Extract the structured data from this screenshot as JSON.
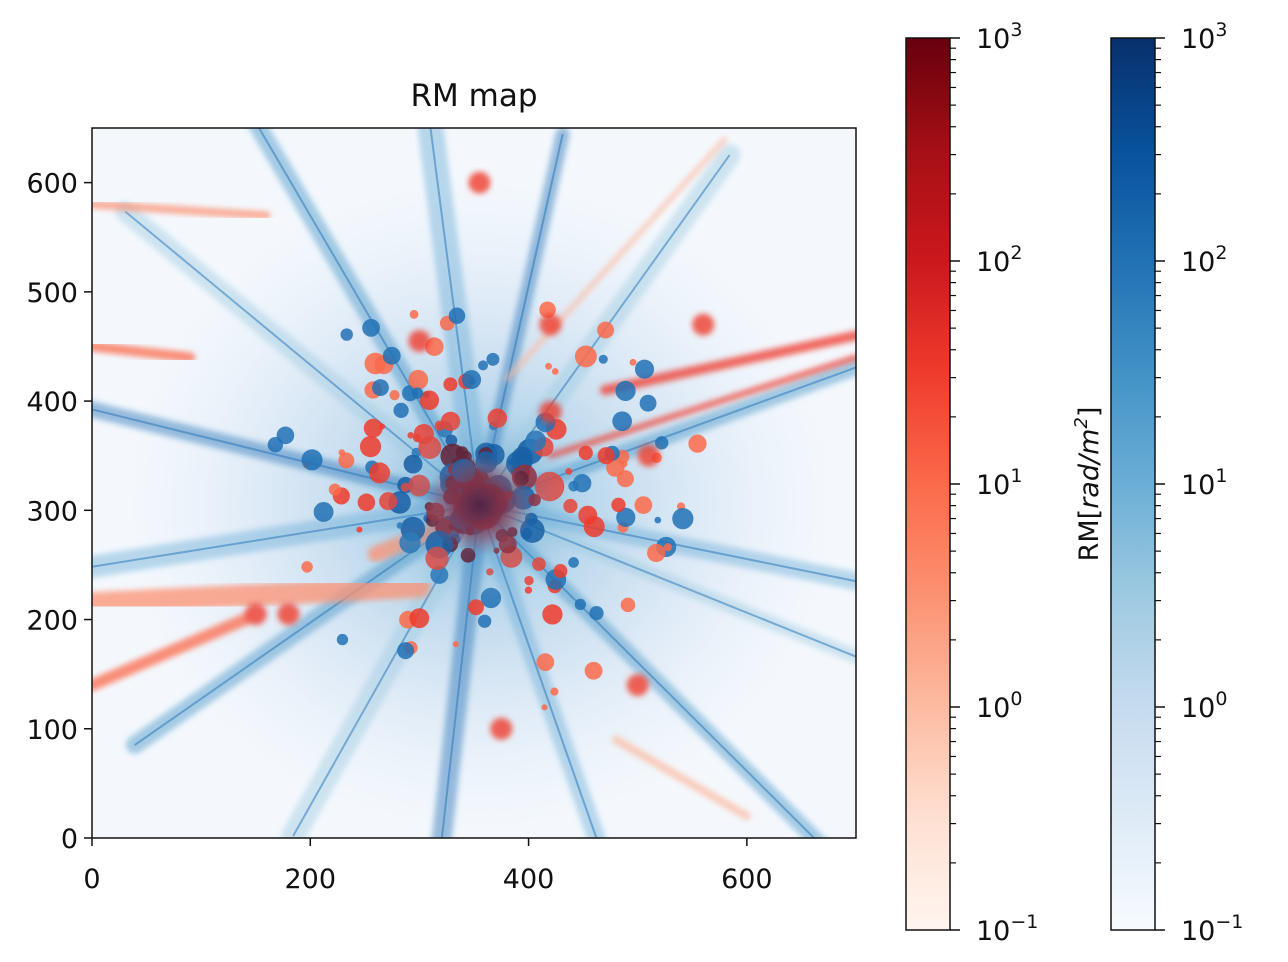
{
  "chart_data": {
    "type": "heatmap",
    "title": "RM map",
    "xlabel": "",
    "ylabel": "",
    "xlim": [
      0,
      700
    ],
    "ylim": [
      0,
      650
    ],
    "x_ticks": [
      "0",
      "200",
      "400",
      "600"
    ],
    "y_ticks": [
      "0",
      "100",
      "200",
      "300",
      "400",
      "500",
      "600"
    ],
    "x_tick_values": [
      0,
      200,
      400,
      600
    ],
    "y_tick_values": [
      0,
      100,
      200,
      300,
      400,
      500,
      600
    ],
    "grid": false,
    "center": [
      355,
      305
    ],
    "colorscale": "log",
    "series": [
      {
        "name": "",
        "sign": "positive",
        "colormap": "Reds",
        "color_low": "#fff5f0",
        "color_high": "#67000d"
      },
      {
        "name": "",
        "sign": "negative",
        "colormap": "Blues",
        "color_low": "#f7fbff",
        "color_high": "#08306b"
      }
    ],
    "colorbars": [
      {
        "colormap": "Reds",
        "range": [
          0.1,
          1000
        ],
        "scale": "log",
        "tick_values": [
          0.1,
          1,
          10,
          100,
          1000
        ],
        "tick_labels": [
          {
            "base": "10",
            "exp": "−1"
          },
          {
            "base": "10",
            "exp": "0"
          },
          {
            "base": "10",
            "exp": "1"
          },
          {
            "base": "10",
            "exp": "2"
          },
          {
            "base": "10",
            "exp": "3"
          }
        ],
        "label": ""
      },
      {
        "colormap": "Blues",
        "range": [
          0.1,
          1000
        ],
        "scale": "log",
        "tick_values": [
          0.1,
          1,
          10,
          100,
          1000
        ],
        "tick_labels": [
          {
            "base": "10",
            "exp": "−1"
          },
          {
            "base": "10",
            "exp": "0"
          },
          {
            "base": "10",
            "exp": "1"
          },
          {
            "base": "10",
            "exp": "2"
          },
          {
            "base": "10",
            "exp": "3"
          }
        ],
        "label": "RM[rad/m²]",
        "label_parts": {
          "pre": "RM[",
          "main": "rad/m",
          "sup": "2",
          "post": "]"
        }
      }
    ]
  }
}
